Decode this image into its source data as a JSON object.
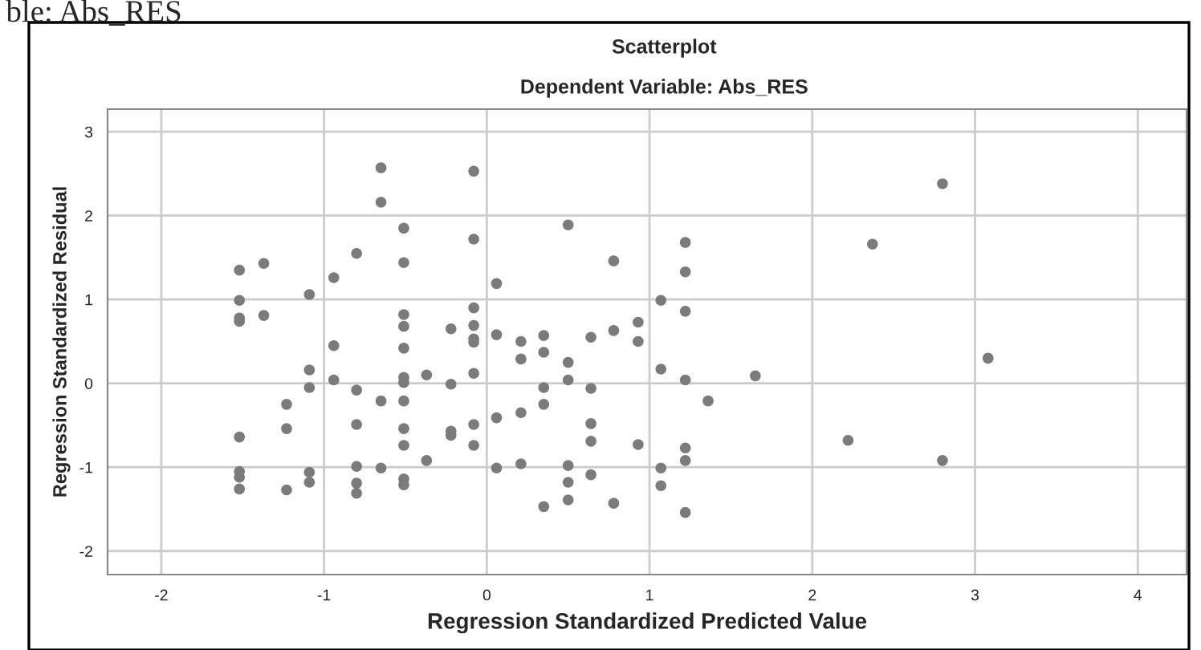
{
  "chart_data": {
    "type": "scatter",
    "title": "Scatterplot",
    "subtitle": "Dependent Variable: Abs_RES",
    "xlabel": "Regression Standardized Predicted Value",
    "ylabel": "Regression Standardized Residual",
    "annotations": [
      "ble: Abs_RES"
    ],
    "xlim": [
      -2.33,
      4.3
    ],
    "ylim": [
      -2.28,
      3.27
    ],
    "xticks": [
      -2,
      -1,
      0,
      1,
      2,
      3,
      4
    ],
    "yticks": [
      -2,
      -1,
      0,
      1,
      2,
      3
    ],
    "grid": true,
    "marker": "circle",
    "series": [
      {
        "color": "#7b7b7b",
        "x": [
          -0.65,
          -0.08,
          -0.65,
          -0.51,
          -0.08,
          -0.8,
          -0.51,
          -1.37,
          -1.52,
          -0.94,
          0.06,
          -1.09,
          -1.52,
          -0.51,
          -0.08,
          -1.52,
          -1.52,
          -1.37,
          -0.51,
          -0.22,
          -0.08,
          -0.08,
          -0.08,
          0.06,
          0.21,
          0.21,
          -0.94,
          -0.51,
          -1.09,
          -1.09,
          -0.94,
          -0.51,
          -0.51,
          -0.37,
          -0.22,
          -0.08,
          -0.8,
          -0.65,
          -0.51,
          -1.23,
          -1.23,
          -1.52,
          -0.8,
          -0.51,
          -0.51,
          -0.22,
          -0.22,
          -0.08,
          -0.08,
          0.06,
          -0.37,
          -0.8,
          -0.65,
          0.06,
          0.21,
          -1.52,
          -1.52,
          -1.52,
          -1.23,
          -1.09,
          -1.09,
          -0.8,
          -0.8,
          -0.51,
          -0.51,
          0.21,
          0.35,
          0.35,
          0.35,
          0.35,
          0.35,
          0.5,
          0.5,
          0.5,
          0.5,
          0.5,
          0.5,
          0.64,
          0.64,
          0.64,
          0.64,
          0.64,
          0.78,
          0.78,
          0.78,
          0.93,
          0.93,
          0.93,
          1.07,
          1.07,
          1.07,
          1.07,
          1.22,
          1.22,
          1.22,
          1.22,
          1.22,
          1.22,
          1.22,
          1.36,
          1.65,
          2.8,
          2.37,
          3.08,
          2.22,
          2.8
        ],
        "values": [
          2.57,
          2.53,
          2.16,
          1.85,
          1.72,
          1.55,
          1.44,
          1.43,
          1.35,
          1.26,
          1.19,
          1.06,
          0.99,
          0.82,
          0.9,
          0.78,
          0.74,
          0.81,
          0.68,
          0.65,
          0.69,
          0.53,
          0.49,
          0.58,
          0.5,
          0.29,
          0.45,
          0.42,
          0.16,
          -0.05,
          0.04,
          0.07,
          0.01,
          0.1,
          -0.01,
          0.12,
          -0.08,
          -0.21,
          -0.21,
          -0.25,
          -0.54,
          -0.64,
          -0.49,
          -0.54,
          -0.74,
          -0.57,
          -0.62,
          -0.49,
          -0.74,
          -0.41,
          -0.92,
          -0.99,
          -1.01,
          -1.01,
          -0.96,
          -1.05,
          -1.12,
          -1.26,
          -1.27,
          -1.06,
          -1.18,
          -1.19,
          -1.31,
          -1.14,
          -1.21,
          -0.35,
          0.57,
          0.37,
          -0.05,
          -0.25,
          -1.47,
          1.89,
          0.25,
          0.04,
          -0.98,
          -1.18,
          -1.39,
          0.55,
          -0.06,
          -0.48,
          -0.69,
          -1.09,
          1.46,
          0.63,
          -1.43,
          0.73,
          0.5,
          -0.73,
          0.99,
          0.17,
          -1.01,
          -1.22,
          1.68,
          1.33,
          0.86,
          0.04,
          -0.77,
          -0.92,
          -1.54,
          -0.21,
          0.09,
          2.38,
          1.66,
          0.3,
          -0.68,
          -0.92
        ]
      }
    ]
  }
}
